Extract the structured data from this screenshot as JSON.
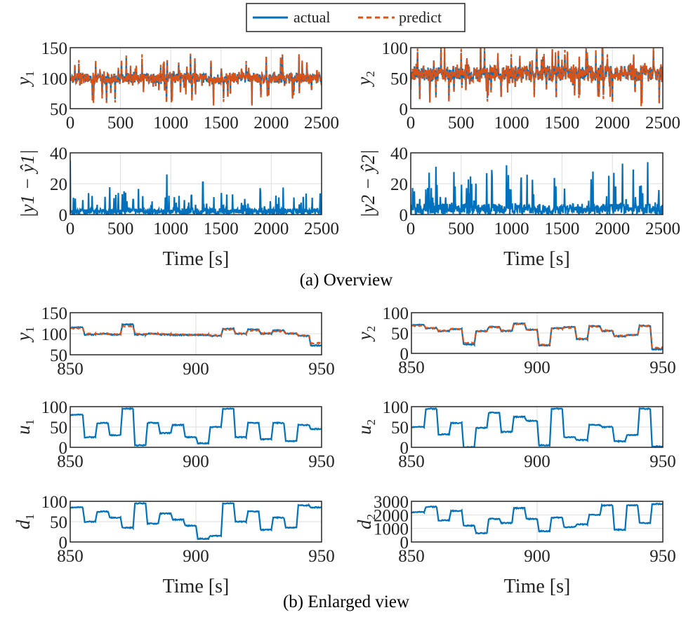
{
  "colors": {
    "actual": "#0072BD",
    "predict": "#D95319",
    "grid": "#dddddd",
    "axis": "#262626"
  },
  "legend": {
    "actual": "actual",
    "predict": "predict"
  },
  "captions": {
    "overview": "(a) Overview",
    "enlarged": "(b) Enlarged view"
  },
  "chart_data": [
    {
      "id": "ov_y1",
      "type": "line",
      "ylabel": "y",
      "ysub": "1",
      "xlim": [
        0,
        2500
      ],
      "ylim": [
        50,
        150
      ],
      "xticks": [
        "0",
        "500",
        "1000",
        "1500",
        "2000",
        "2500"
      ],
      "yticks": [
        "50",
        "100",
        "150"
      ],
      "xlabel": "",
      "series": [
        {
          "name": "actual",
          "mean": 100,
          "noise": 8,
          "spike": 35,
          "seed": 3
        },
        {
          "name": "predict",
          "mean": 100,
          "noise": 8,
          "spike": 40,
          "seed": 3,
          "jitter": 3
        }
      ]
    },
    {
      "id": "ov_y2",
      "type": "line",
      "ylabel": "y",
      "ysub": "2",
      "xlim": [
        0,
        2500
      ],
      "ylim": [
        0,
        100
      ],
      "xticks": [
        "0",
        "500",
        "1000",
        "1500",
        "2000",
        "2500"
      ],
      "yticks": [
        "0",
        "50",
        "100"
      ],
      "xlabel": "",
      "series": [
        {
          "name": "actual",
          "mean": 58,
          "noise": 12,
          "spike": 45,
          "seed": 7
        },
        {
          "name": "predict",
          "mean": 58,
          "noise": 12,
          "spike": 50,
          "seed": 7,
          "jitter": 4
        }
      ]
    },
    {
      "id": "ov_e1",
      "type": "line",
      "ylabel": "|y1 − ŷ1|",
      "xlim": [
        0,
        2500
      ],
      "ylim": [
        0,
        40
      ],
      "xticks": [
        "0",
        "500",
        "1000",
        "1500",
        "2000",
        "2500"
      ],
      "yticks": [
        "0",
        "20",
        "40"
      ],
      "xlabel": "Time [s]",
      "series": [
        {
          "name": "actual",
          "abs": true,
          "mean": 0,
          "noise": 4,
          "spike": 15,
          "seed": 11,
          "peaks": [
            [
              0,
              35
            ],
            [
              960,
              26
            ],
            [
              1320,
              21
            ]
          ]
        }
      ]
    },
    {
      "id": "ov_e2",
      "type": "line",
      "ylabel": "|y2 − ŷ2|",
      "xlim": [
        0,
        2500
      ],
      "ylim": [
        0,
        40
      ],
      "xticks": [
        "0",
        "500",
        "1000",
        "1500",
        "2000",
        "2500"
      ],
      "yticks": [
        "0",
        "20",
        "40"
      ],
      "xlabel": "Time [s]",
      "series": [
        {
          "name": "actual",
          "abs": true,
          "mean": 0,
          "noise": 7,
          "spike": 25,
          "seed": 13,
          "peaks": [
            [
              250,
              31
            ],
            [
              950,
              32
            ],
            [
              2100,
              33
            ],
            [
              2350,
              34
            ]
          ]
        }
      ]
    },
    {
      "id": "en_y1",
      "type": "line",
      "ylabel": "y",
      "ysub": "1",
      "xlim": [
        850,
        950
      ],
      "ylim": [
        50,
        150
      ],
      "xticks": [
        "850",
        "900",
        "950"
      ],
      "yticks": [
        "50",
        "100",
        "150"
      ],
      "xlabel": "",
      "step": 5,
      "series": [
        {
          "name": "actual",
          "values": [
            115,
            98,
            100,
            98,
            122,
            98,
            100,
            98,
            97,
            97,
            97,
            95,
            112,
            100,
            110,
            100,
            108,
            100,
            95,
            72
          ]
        },
        {
          "name": "predict",
          "values": [
            113,
            100,
            100,
            99,
            118,
            100,
            100,
            99,
            98,
            97,
            98,
            96,
            110,
            101,
            108,
            101,
            106,
            101,
            96,
            78
          ]
        }
      ]
    },
    {
      "id": "en_y2",
      "type": "line",
      "ylabel": "y",
      "ysub": "2",
      "xlim": [
        850,
        950
      ],
      "ylim": [
        0,
        100
      ],
      "xticks": [
        "850",
        "900",
        "950"
      ],
      "yticks": [
        "0",
        "50",
        "100"
      ],
      "xlabel": "",
      "step": 5,
      "series": [
        {
          "name": "actual",
          "values": [
            70,
            62,
            55,
            60,
            22,
            55,
            65,
            55,
            73,
            58,
            20,
            62,
            65,
            35,
            67,
            55,
            42,
            45,
            68,
            10
          ]
        },
        {
          "name": "predict",
          "values": [
            68,
            62,
            56,
            60,
            26,
            54,
            64,
            56,
            72,
            58,
            21,
            61,
            63,
            36,
            66,
            56,
            43,
            45,
            67,
            14
          ]
        }
      ]
    },
    {
      "id": "en_u1",
      "type": "line",
      "ylabel": "u",
      "ysub": "1",
      "xlim": [
        850,
        950
      ],
      "ylim": [
        0,
        100
      ],
      "xticks": [
        "850",
        "900",
        "950"
      ],
      "yticks": [
        "0",
        "50",
        "100"
      ],
      "xlabel": "",
      "step": 5,
      "series": [
        {
          "name": "actual",
          "values": [
            80,
            25,
            60,
            30,
            95,
            5,
            60,
            35,
            55,
            25,
            10,
            50,
            95,
            25,
            60,
            20,
            60,
            15,
            55,
            45
          ]
        }
      ]
    },
    {
      "id": "en_u2",
      "type": "line",
      "ylabel": "u",
      "ysub": "2",
      "xlim": [
        850,
        950
      ],
      "ylim": [
        0,
        100
      ],
      "xticks": [
        "850",
        "900",
        "950"
      ],
      "yticks": [
        "0",
        "50",
        "100"
      ],
      "xlabel": "",
      "step": 5,
      "series": [
        {
          "name": "actual",
          "values": [
            50,
            95,
            32,
            60,
            0,
            48,
            85,
            38,
            75,
            65,
            5,
            95,
            25,
            18,
            55,
            50,
            15,
            30,
            95,
            2
          ]
        }
      ]
    },
    {
      "id": "en_d1",
      "type": "line",
      "ylabel": "d",
      "ysub": "1",
      "xlim": [
        850,
        950
      ],
      "ylim": [
        0,
        100
      ],
      "xticks": [
        "850",
        "900",
        "950"
      ],
      "yticks": [
        "0",
        "50",
        "100"
      ],
      "xlabel": "Time [s]",
      "step": 5,
      "series": [
        {
          "name": "actual",
          "values": [
            85,
            50,
            75,
            60,
            35,
            95,
            45,
            70,
            55,
            40,
            8,
            15,
            95,
            50,
            75,
            30,
            60,
            35,
            90,
            85
          ]
        }
      ]
    },
    {
      "id": "en_d2",
      "type": "line",
      "ylabel": "d",
      "ysub": "2",
      "xlim": [
        850,
        950
      ],
      "ylim": [
        0,
        3000
      ],
      "xticks": [
        "850",
        "900",
        "950"
      ],
      "yticks": [
        "0",
        "1000",
        "2000",
        "3000"
      ],
      "xlabel": "Time [s]",
      "step": 5,
      "series": [
        {
          "name": "actual",
          "values": [
            2200,
            2600,
            1600,
            2300,
            1200,
            650,
            1700,
            1400,
            2500,
            1700,
            800,
            1800,
            1100,
            1300,
            2000,
            2700,
            900,
            2700,
            1400,
            2800
          ]
        }
      ]
    }
  ]
}
